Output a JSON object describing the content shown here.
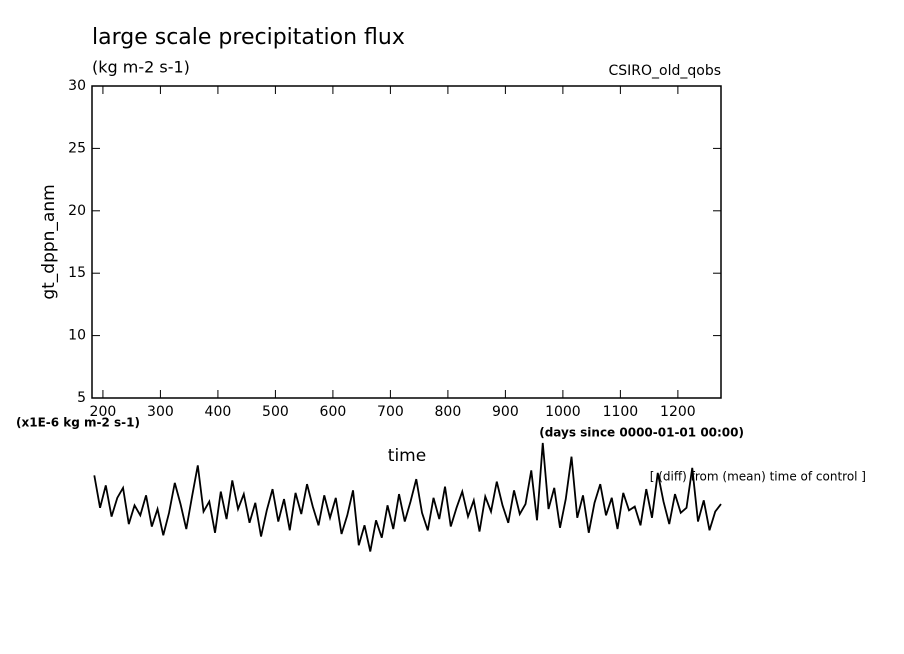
{
  "chart_data": {
    "type": "line",
    "title": "large scale precipitation flux",
    "subtitle": "(kg m-2 s-1)",
    "dataset_label": "CSIRO_old_qobs",
    "y_label": "gt_dppn_anm",
    "x_label": "time",
    "y_unit_note": "(x1E-6 kg m-2 s-1)",
    "x_unit_note": "(days since 0000-01-01 00:00)",
    "annotation": "[ (diff) from (mean) time of control ]",
    "xlim": [
      181,
      1275
    ],
    "ylim": [
      5,
      30
    ],
    "xticks": [
      200,
      300,
      400,
      500,
      600,
      700,
      800,
      900,
      1000,
      1100,
      1200
    ],
    "yticks": [
      5,
      10,
      15,
      20,
      25,
      30
    ],
    "x": [
      185,
      195,
      205,
      215,
      225,
      235,
      245,
      255,
      265,
      275,
      285,
      295,
      305,
      315,
      325,
      335,
      345,
      355,
      365,
      375,
      385,
      395,
      405,
      415,
      425,
      435,
      445,
      455,
      465,
      475,
      485,
      495,
      505,
      515,
      525,
      535,
      545,
      555,
      565,
      575,
      585,
      595,
      605,
      615,
      625,
      635,
      645,
      655,
      665,
      675,
      685,
      695,
      705,
      715,
      725,
      735,
      745,
      755,
      765,
      775,
      785,
      795,
      805,
      815,
      825,
      835,
      845,
      855,
      865,
      875,
      885,
      895,
      905,
      915,
      925,
      935,
      945,
      955,
      965,
      975,
      985,
      995,
      1005,
      1015,
      1025,
      1035,
      1045,
      1055,
      1065,
      1075,
      1085,
      1095,
      1105,
      1115,
      1125,
      1135,
      1145,
      1155,
      1165,
      1175,
      1185,
      1195,
      1205,
      1215,
      1225,
      1235,
      1245,
      1255,
      1265,
      1275
    ],
    "series": [
      {
        "color": "#000000",
        "values": [
          -1.2,
          -3.8,
          -2.0,
          -4.5,
          -3.0,
          -2.2,
          -5.1,
          -3.6,
          -4.4,
          -2.8,
          -5.3,
          -3.9,
          -6.0,
          -4.2,
          -1.8,
          -3.5,
          -5.5,
          -2.9,
          -0.4,
          -4.1,
          -3.3,
          -5.8,
          -2.5,
          -4.7,
          -1.6,
          -3.9,
          -2.7,
          -5.0,
          -3.4,
          -6.1,
          -4.0,
          -2.3,
          -4.9,
          -3.1,
          -5.6,
          -2.6,
          -4.3,
          -1.9,
          -3.7,
          -5.2,
          -2.8,
          -4.6,
          -3.0,
          -5.9,
          -4.4,
          -2.4,
          -6.8,
          -5.2,
          -7.3,
          -4.8,
          -6.2,
          -3.6,
          -5.5,
          -2.7,
          -4.9,
          -3.3,
          -1.5,
          -4.2,
          -5.6,
          -3.0,
          -4.7,
          -2.1,
          -5.3,
          -3.8,
          -2.5,
          -4.5,
          -3.2,
          -5.7,
          -2.9,
          -4.1,
          -1.7,
          -3.6,
          -5.0,
          -2.4,
          -4.3,
          -3.5,
          -0.8,
          -4.8,
          1.4,
          -3.9,
          -2.2,
          -5.4,
          -3.1,
          0.3,
          -4.6,
          -2.8,
          -5.8,
          -3.4,
          -1.9,
          -4.4,
          -3.0,
          -5.5,
          -2.6,
          -4.0,
          -3.7,
          -5.2,
          -2.3,
          -4.6,
          -1.0,
          -3.3,
          -5.1,
          -2.7,
          -4.2,
          -3.8,
          -0.6,
          -4.9,
          -3.2,
          -5.6,
          -4.1,
          -3.5
        ]
      }
    ]
  }
}
